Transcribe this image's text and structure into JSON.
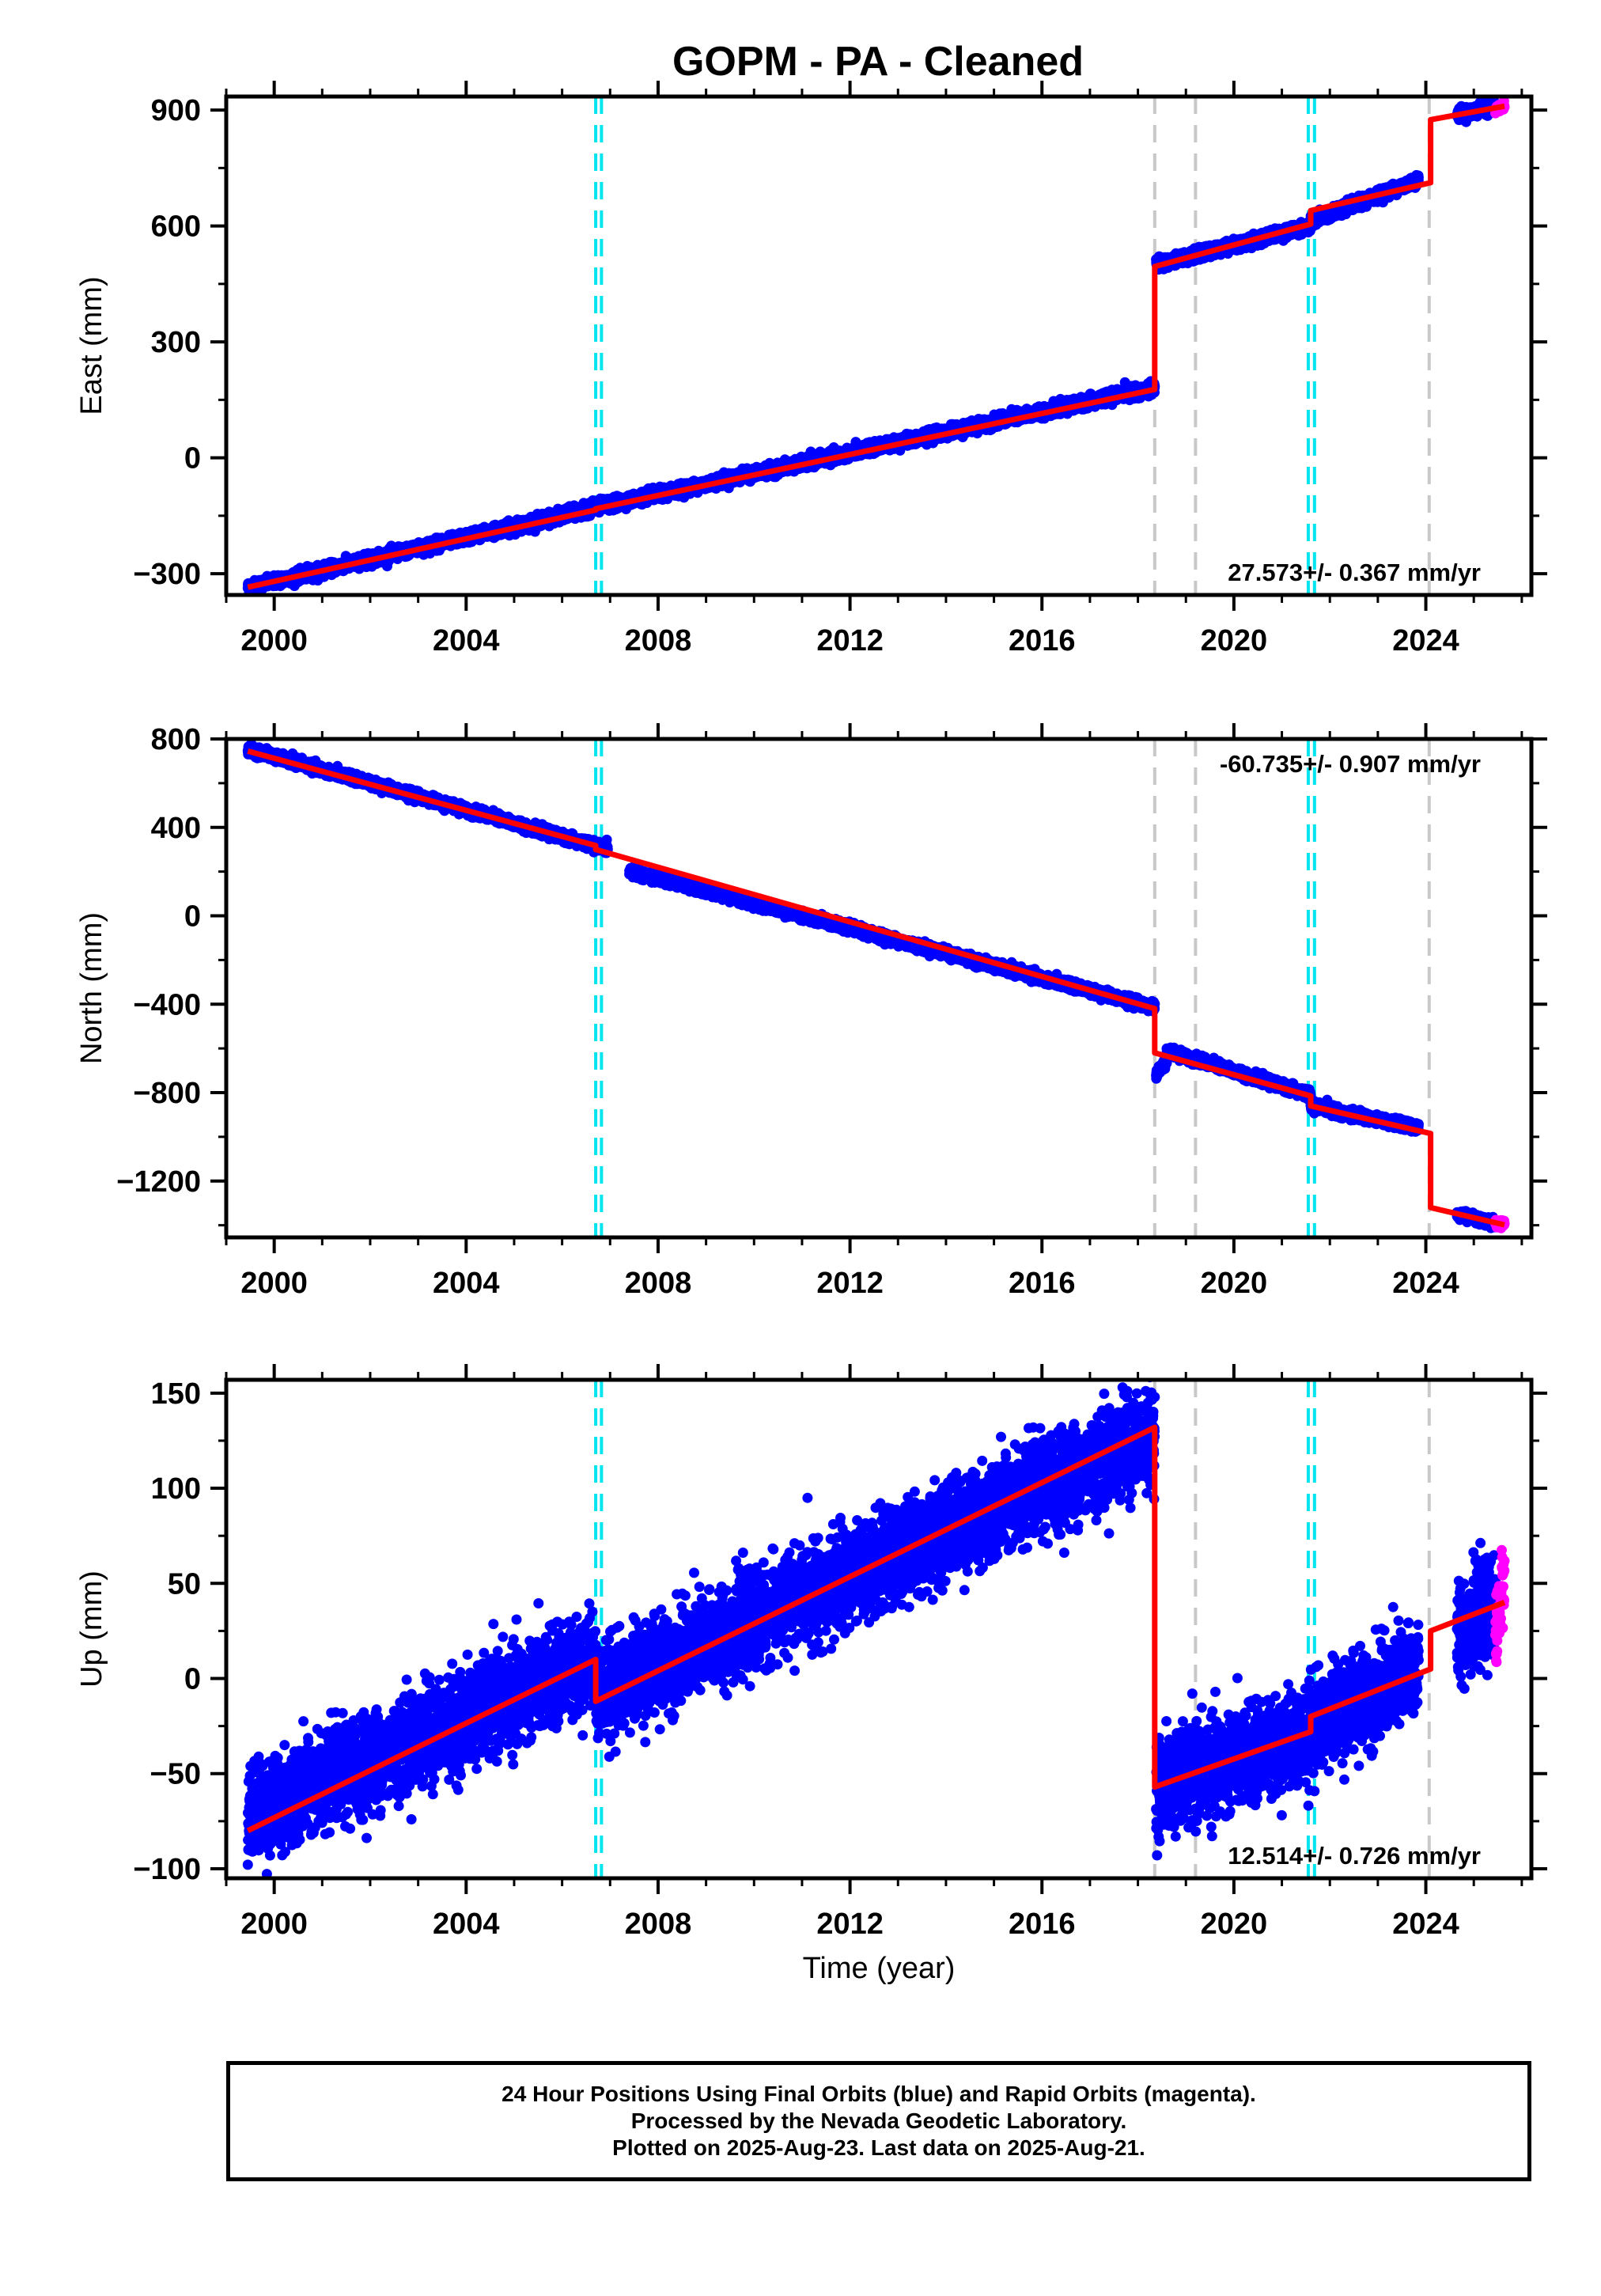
{
  "figure_title": "GOPM  - PA - Cleaned",
  "colors": {
    "final_orbits": "#0000ff",
    "rapid_orbits": "#ff00ff",
    "model": "#ff0000",
    "antenna_change": "#00e5ee",
    "earthquake": "#c8c8c8"
  },
  "chart_data": [
    {
      "type": "scatter",
      "component": "East",
      "ylabel": "East (mm)",
      "xlabel": "",
      "xlim": [
        1999.0,
        2026.2
      ],
      "ylim": [
        -355,
        935
      ],
      "yticks": [
        -300,
        0,
        300,
        600,
        900
      ],
      "xticks": [
        2000,
        2004,
        2008,
        2012,
        2016,
        2020,
        2024
      ],
      "rate_text": "27.573+/- 0.367 mm/yr",
      "rate_position": "bottom-right",
      "noise": 7,
      "data_segments": [
        {
          "t0": 1999.45,
          "t1": 2006.8,
          "y0": -335,
          "y1": -126
        },
        {
          "t0": 2006.8,
          "t1": 2018.35,
          "y0": -126,
          "y1": 182
        },
        {
          "t0": 2018.38,
          "t1": 2021.6,
          "y0": 500,
          "y1": 600
        },
        {
          "t0": 2021.6,
          "t1": 2023.85,
          "y0": 612,
          "y1": 720
        },
        {
          "t0": 2024.65,
          "t1": 2025.45,
          "y0": 888,
          "y1": 908
        }
      ],
      "rapid_segment": {
        "t0": 2025.45,
        "t1": 2025.64,
        "y0": 900,
        "y1": 912
      },
      "model": [
        [
          1999.45,
          -335
        ],
        [
          2006.7,
          -135
        ],
        [
          2006.7,
          -132
        ],
        [
          2018.35,
          177
        ],
        [
          2018.35,
          495
        ],
        [
          2021.6,
          605
        ],
        [
          2021.6,
          640
        ],
        [
          2024.1,
          712
        ],
        [
          2024.1,
          875
        ],
        [
          2025.64,
          910
        ]
      ]
    },
    {
      "type": "scatter",
      "component": "North",
      "ylabel": "North (mm)",
      "xlabel": "",
      "xlim": [
        1999.0,
        2026.2
      ],
      "ylim": [
        -1455,
        800
      ],
      "yticks": [
        -1200,
        -800,
        -400,
        0,
        400,
        800
      ],
      "xticks": [
        2000,
        2004,
        2008,
        2012,
        2016,
        2020,
        2024
      ],
      "rate_text": "-60.735+/- 0.907 mm/yr",
      "rate_position": "top-right",
      "noise": 10,
      "data_segments": [
        {
          "t0": 1999.45,
          "t1": 2006.95,
          "y0": 755,
          "y1": 300
        },
        {
          "t0": 2007.4,
          "t1": 2018.35,
          "y0": 205,
          "y1": -415
        },
        {
          "t0": 2018.38,
          "t1": 2018.6,
          "y0": -720,
          "y1": -650
        },
        {
          "t0": 2018.6,
          "t1": 2021.6,
          "y0": -610,
          "y1": -810
        },
        {
          "t0": 2021.6,
          "t1": 2023.85,
          "y0": -860,
          "y1": -960
        },
        {
          "t0": 2024.65,
          "t1": 2025.45,
          "y0": -1350,
          "y1": -1390
        }
      ],
      "rapid_segment": {
        "t0": 2025.45,
        "t1": 2025.64,
        "y0": -1390,
        "y1": -1395
      },
      "model": [
        [
          1999.45,
          745
        ],
        [
          2006.7,
          318
        ],
        [
          2006.7,
          300
        ],
        [
          2018.35,
          -420
        ],
        [
          2018.35,
          -620
        ],
        [
          2021.6,
          -815
        ],
        [
          2021.6,
          -860
        ],
        [
          2024.1,
          -985
        ],
        [
          2024.1,
          -1320
        ],
        [
          2025.64,
          -1398
        ]
      ]
    },
    {
      "type": "scatter",
      "component": "Up",
      "ylabel": "Up (mm)",
      "xlabel": "Time (year)",
      "xlim": [
        1999.0,
        2026.2
      ],
      "ylim": [
        -105,
        157
      ],
      "yticks": [
        -100,
        -50,
        0,
        50,
        100,
        150
      ],
      "xticks": [
        2000,
        2004,
        2008,
        2012,
        2016,
        2020,
        2024
      ],
      "rate_text": "12.514+/- 0.726 mm/yr",
      "rate_position": "bottom-right",
      "noise": 12,
      "data_segments": [
        {
          "t0": 1999.45,
          "t1": 2006.7,
          "y0": -72,
          "y1": 10
        },
        {
          "t0": 2006.7,
          "t1": 2018.35,
          "y0": -8,
          "y1": 128
        },
        {
          "t0": 2018.38,
          "t1": 2021.6,
          "y0": -57,
          "y1": -30
        },
        {
          "t0": 2021.6,
          "t1": 2023.85,
          "y0": -25,
          "y1": 5
        },
        {
          "t0": 2024.65,
          "t1": 2025.45,
          "y0": 25,
          "y1": 38
        }
      ],
      "rapid_segment": {
        "t0": 2025.45,
        "t1": 2025.64,
        "y0": 22,
        "y1": 55
      },
      "model": [
        [
          1999.45,
          -80
        ],
        [
          2006.7,
          10
        ],
        [
          2006.7,
          -12
        ],
        [
          2018.35,
          132
        ],
        [
          2018.35,
          -57
        ],
        [
          2021.6,
          -28
        ],
        [
          2021.6,
          -20
        ],
        [
          2024.1,
          5
        ],
        [
          2024.1,
          25
        ],
        [
          2025.64,
          40
        ]
      ]
    }
  ],
  "events": {
    "antenna_changes": [
      2006.7,
      2006.82,
      2021.55,
      2021.68
    ],
    "earthquakes": [
      2018.35,
      2019.2,
      2024.07
    ]
  },
  "footer": {
    "line1": "24 Hour Positions Using Final Orbits (blue) and Rapid Orbits (magenta).",
    "line2": "Processed by the Nevada Geodetic Laboratory.",
    "line3": "Plotted on 2025-Aug-23. Last data on 2025-Aug-21."
  }
}
